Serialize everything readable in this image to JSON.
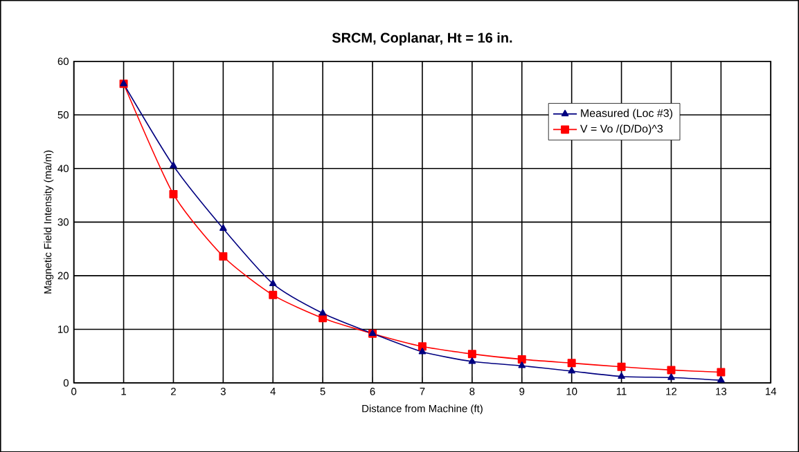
{
  "chart_data": {
    "type": "line",
    "title": "SRCM, Coplanar, Ht = 16 in.",
    "xlabel": "Distance from Machine  (ft)",
    "ylabel": "Magnetic Field Intensity (ma/m)",
    "x": [
      1,
      2,
      3,
      4,
      5,
      6,
      7,
      8,
      9,
      10,
      11,
      12,
      13
    ],
    "series": [
      {
        "name": "Measured (Loc #3)",
        "color": "#000080",
        "marker": "triangle",
        "values": [
          55.8,
          40.5,
          28.8,
          18.5,
          13,
          9.2,
          5.8,
          4,
          3.2,
          2.2,
          1.2,
          1.0,
          0.5
        ]
      },
      {
        "name": "V = Vo /(D/Do)^3",
        "color": "#ff0000",
        "marker": "square",
        "values": [
          55.8,
          35.2,
          23.6,
          16.4,
          12.1,
          9.2,
          6.8,
          5.4,
          4.4,
          3.7,
          3.0,
          2.4,
          2.0
        ]
      }
    ],
    "xlim": [
      0,
      14
    ],
    "xticks": [
      0,
      1,
      2,
      3,
      4,
      5,
      6,
      7,
      8,
      9,
      10,
      11,
      12,
      13,
      14
    ],
    "ylim": [
      0,
      60
    ],
    "yticks": [
      0,
      10,
      20,
      30,
      40,
      50,
      60
    ],
    "grid": true,
    "legend": "top right",
    "line_style": "solid"
  }
}
